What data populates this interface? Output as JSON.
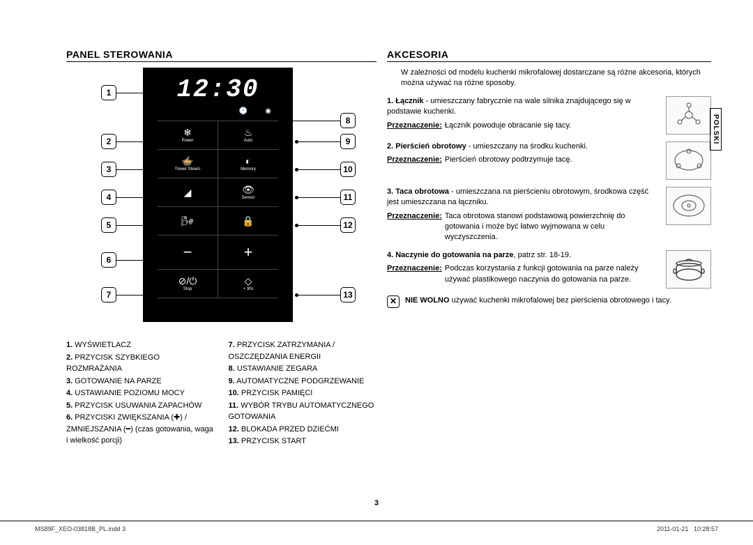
{
  "side_tab": "POLSKI",
  "page_number": "3",
  "footer": {
    "left": "MS89F_XEO-03818B_PL.indd   3",
    "date": "2011-01-21",
    "time": "10:28:57"
  },
  "panel": {
    "heading": "PANEL STEROWANIA",
    "display": "12:30",
    "buttons": {
      "r1c1_label": "Power",
      "r1c2_label": "Auto",
      "r2c1_label": "Power Steam",
      "r2c2_label": "Memory",
      "r3c1_label": "",
      "r3c2_label": "Sensor",
      "r4c1_label": "",
      "r4c2_label": "",
      "r6c1_label": "Stop",
      "r6c2_label": "+ 30s"
    },
    "callouts": {
      "n1": "1",
      "n2": "2",
      "n3": "3",
      "n4": "4",
      "n5": "5",
      "n6": "6",
      "n7": "7",
      "n8": "8",
      "n9": "9",
      "n10": "10",
      "n11": "11",
      "n12": "12",
      "n13": "13"
    },
    "legend_left": [
      {
        "n": "1.",
        "t": "WYŚWIETLACZ"
      },
      {
        "n": "2.",
        "t": "PRZYCISK SZYBKIEGO ROZMRAŻANIA"
      },
      {
        "n": "3.",
        "t": "GOTOWANIE NA PARZE"
      },
      {
        "n": "4.",
        "t": "USTAWIANIE POZIOMU MOCY"
      },
      {
        "n": "5.",
        "t": "PRZYCISK USUWANIA ZAPACHÓW"
      },
      {
        "n": "6.",
        "t": "PRZYCISKI ZWIĘKSZANIA (✚) / ZMNIEJSZANIA (━) (czas gotowania, waga i wielkość porcji)"
      }
    ],
    "legend_right": [
      {
        "n": "7.",
        "t": "PRZYCISK ZATRZYMANIA / OSZCZĘDZANIA ENERGII"
      },
      {
        "n": "8.",
        "t": "USTAWIANIE ZEGARA"
      },
      {
        "n": "9.",
        "t": "AUTOMATYCZNE PODGRZEWANIE"
      },
      {
        "n": "10.",
        "t": "PRZYCISK PAMIĘCI"
      },
      {
        "n": "11.",
        "t": "WYBÓR TRYBU AUTOMATYCZNEGO GOTOWANIA"
      },
      {
        "n": "12.",
        "t": "BLOKADA PRZED DZIEĆMI"
      },
      {
        "n": "13.",
        "t": "PRZYCISK START"
      }
    ]
  },
  "accessories": {
    "heading": "AKCESORIA",
    "intro": "W zależności od modelu kuchenki mikrofalowej dostarczane są różne akcesoria, których można używać na różne sposoby.",
    "purpose_label": "Przeznaczenie:",
    "items": [
      {
        "n": "1.",
        "name": "Łącznik",
        "desc": " - umieszczany fabrycznie na wale silnika znajdującego się w podstawie kuchenki.",
        "purpose": "Łącznik powoduje obracanie się tacy."
      },
      {
        "n": "2.",
        "name": "Pierścień obrotowy",
        "desc": " - umieszczany na środku kuchenki.",
        "purpose": "Pierścień obrotowy podtrzymuje tacę."
      },
      {
        "n": "3.",
        "name": "Taca obrotowa",
        "desc": " - umieszczana na pierścieniu obrotowym, środkowa część jest umieszczana na łączniku.",
        "purpose": "Taca obrotowa stanowi podstawową powierzchnię do gotowania i może być łatwo wyjmowana w celu wyczyszczenia."
      },
      {
        "n": "4.",
        "name": "Naczynie do gotowania na parze",
        "desc": ", patrz str. 18-19.",
        "purpose": "Podczas korzystania z funkcji gotowania na parze należy używać plastikowego naczynia do gotowania na parze."
      }
    ],
    "warning": {
      "label": "NIE WOLNO",
      "text": " używać kuchenki mikrofalowej bez pierścienia obrotowego i tacy."
    }
  }
}
